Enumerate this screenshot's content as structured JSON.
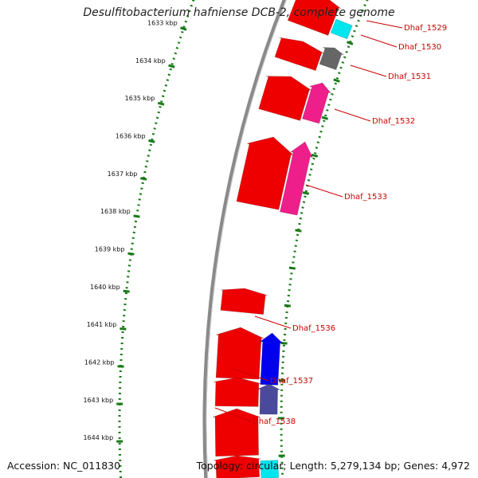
{
  "title": "Desulfitobacterium hafniense DCB-2, complete genome",
  "accession_text": "Accession: NC_011830",
  "topology_text": "Topology: circular; Length: 5,279,134 bp; Genes: 4,972",
  "colors": {
    "backbone": "#8a8a8a",
    "scale_dots": "#1a7a1a",
    "label": "#cc0000",
    "red": "#ee0000",
    "magenta": "#ee1f8a",
    "blue": "#0000ee",
    "slate": "#4a4a9c",
    "gray": "#666666",
    "cyan": "#00e5ee"
  },
  "kbp_labels": [
    "1633 kbp",
    "1634 kbp",
    "1635 kbp",
    "1636 kbp",
    "1637 kbp",
    "1638 kbp",
    "1639 kbp",
    "1640 kbp",
    "1641 kbp",
    "1642 kbp",
    "1643 kbp",
    "1644 kbp"
  ],
  "gene_labels": [
    "Dhaf_1529",
    "Dhaf_1530",
    "Dhaf_1531",
    "Dhaf_1532",
    "Dhaf_1533",
    "Dhaf_1536",
    "Dhaf_1537",
    "Dhaf_1538"
  ],
  "features": [
    {
      "track": "outer",
      "color": "red",
      "shape": "arrow"
    },
    {
      "track": "inner",
      "color": "cyan",
      "shape": "box"
    },
    {
      "track": "outer",
      "color": "red",
      "shape": "arrow"
    },
    {
      "track": "inner",
      "color": "gray",
      "shape": "arrow"
    },
    {
      "track": "outer",
      "color": "red",
      "shape": "arrow"
    },
    {
      "track": "inner",
      "color": "magenta",
      "shape": "arrow"
    },
    {
      "track": "outer",
      "color": "red",
      "shape": "arrow"
    },
    {
      "track": "inner",
      "color": "magenta",
      "shape": "arrow"
    },
    {
      "track": "outer",
      "color": "red",
      "shape": "arrow"
    },
    {
      "track": "outer",
      "color": "red",
      "shape": "arrow"
    },
    {
      "track": "inner",
      "color": "blue",
      "shape": "arrow"
    },
    {
      "track": "outer",
      "color": "red",
      "shape": "arrow"
    },
    {
      "track": "inner",
      "color": "slate",
      "shape": "arrow"
    },
    {
      "track": "outer",
      "color": "red",
      "shape": "arrow"
    },
    {
      "track": "outer",
      "color": "red",
      "shape": "arrow"
    },
    {
      "track": "inner",
      "color": "cyan",
      "shape": "box"
    }
  ]
}
